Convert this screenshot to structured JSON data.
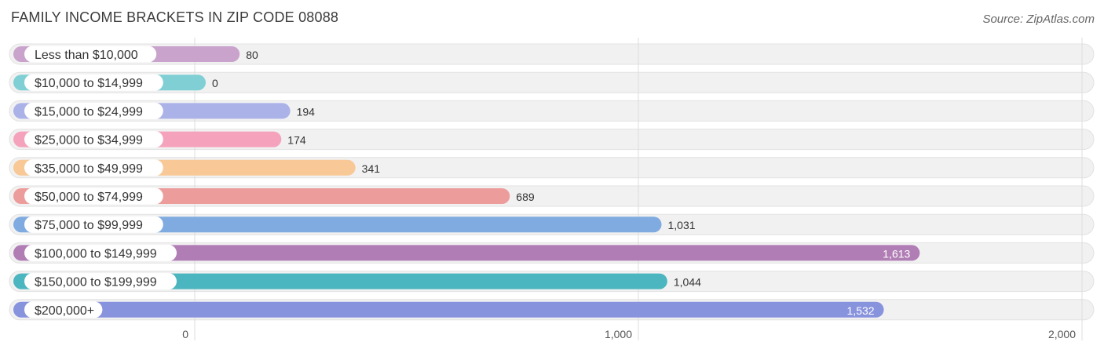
{
  "header": {
    "title": "FAMILY INCOME BRACKETS IN ZIP CODE 08088",
    "source": "Source: ZipAtlas.com"
  },
  "chart_data": {
    "type": "bar",
    "orientation": "horizontal",
    "title": "FAMILY INCOME BRACKETS IN ZIP CODE 08088",
    "categories": [
      "Less than $10,000",
      "$10,000 to $14,999",
      "$15,000 to $24,999",
      "$25,000 to $34,999",
      "$35,000 to $49,999",
      "$50,000 to $74,999",
      "$75,000 to $99,999",
      "$100,000 to $149,999",
      "$150,000 to $199,999",
      "$200,000+"
    ],
    "values": [
      80,
      0,
      194,
      174,
      341,
      689,
      1031,
      1613,
      1044,
      1532
    ],
    "value_labels": [
      "80",
      "0",
      "194",
      "174",
      "341",
      "689",
      "1,031",
      "1,613",
      "1,044",
      "1,532"
    ],
    "colors": [
      "#c9a3cc",
      "#7fcfd4",
      "#aab2e8",
      "#f5a3bd",
      "#f8c896",
      "#ec9c9b",
      "#7fabe0",
      "#b07db5",
      "#4bb5c0",
      "#8893dd"
    ],
    "xlim": [
      0,
      2000
    ],
    "ticks": [
      0,
      1000,
      2000
    ],
    "tick_labels": [
      "0",
      "1,000",
      "2,000"
    ],
    "grid": true
  }
}
